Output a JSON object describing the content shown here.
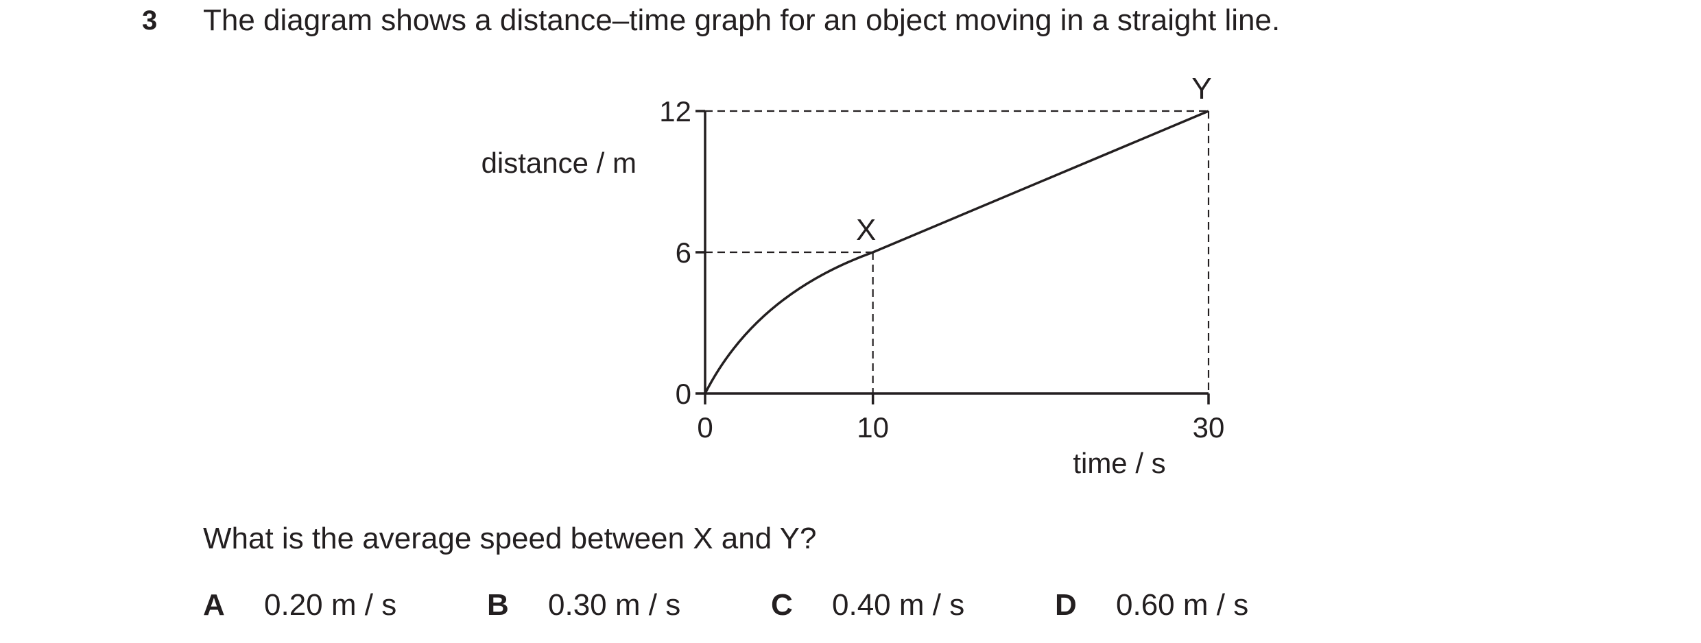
{
  "question": {
    "number": "3",
    "stem": "The diagram shows a distance–time graph for an object moving in a straight line.",
    "prompt": "What is the average speed between X and Y?"
  },
  "options": [
    {
      "letter": "A",
      "value": "0.20 m / s"
    },
    {
      "letter": "B",
      "value": "0.30 m / s"
    },
    {
      "letter": "C",
      "value": "0.40 m / s"
    },
    {
      "letter": "D",
      "value": "0.60 m / s"
    }
  ],
  "chart_data": {
    "type": "line",
    "xlabel": "time / s",
    "ylabel": "distance / m",
    "x_ticks": [
      "0",
      "10",
      "30"
    ],
    "y_ticks": [
      "0",
      "6",
      "12"
    ],
    "xlim": [
      0,
      30
    ],
    "ylim": [
      0,
      12
    ],
    "points": [
      {
        "label": "X",
        "x": 10,
        "y": 6
      },
      {
        "label": "Y",
        "x": 30,
        "y": 12
      }
    ],
    "curve_segment": {
      "from": [
        0,
        0
      ],
      "to": [
        10,
        6
      ],
      "shape": "curve, concave down"
    },
    "straight_segment": {
      "from": [
        10,
        6
      ],
      "to": [
        30,
        12
      ]
    },
    "grid": false
  }
}
